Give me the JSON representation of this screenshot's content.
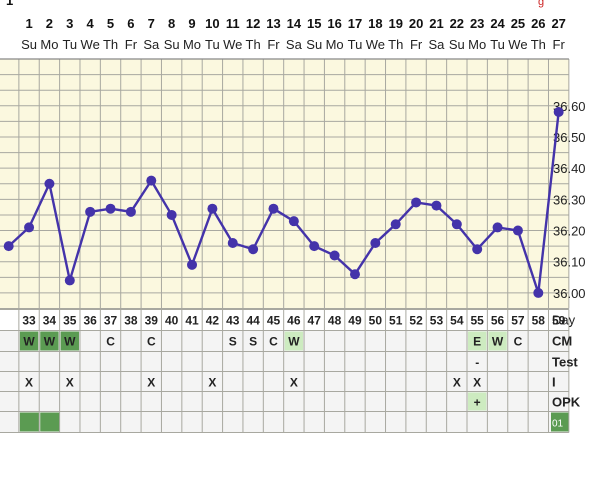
{
  "top_partial": {
    "left": "1",
    "right": "g"
  },
  "header": {
    "dates": [
      "1",
      "2",
      "3",
      "4",
      "5",
      "6",
      "7",
      "8",
      "9",
      "10",
      "11",
      "12",
      "13",
      "14",
      "15",
      "16",
      "17",
      "18",
      "19",
      "20",
      "21",
      "22",
      "23",
      "24",
      "25",
      "26",
      "27"
    ],
    "weekdays": [
      "Su",
      "Mo",
      "Tu",
      "We",
      "Th",
      "Fr",
      "Sa",
      "Su",
      "Mo",
      "Tu",
      "We",
      "Th",
      "Fr",
      "Sa",
      "Su",
      "Mo",
      "Tu",
      "We",
      "Th",
      "Fr",
      "Sa",
      "Su",
      "Mo",
      "Tu",
      "We",
      "Th",
      "Fr"
    ]
  },
  "chart_data": {
    "type": "line",
    "x": [
      32,
      33,
      34,
      35,
      36,
      37,
      38,
      39,
      40,
      41,
      42,
      43,
      44,
      45,
      46,
      47,
      48,
      49,
      50,
      51,
      52,
      53,
      54,
      55,
      56,
      57,
      58,
      59
    ],
    "values": [
      36.15,
      36.21,
      36.35,
      36.04,
      36.26,
      36.27,
      36.26,
      36.36,
      36.25,
      36.09,
      36.27,
      36.16,
      36.14,
      36.27,
      36.23,
      36.15,
      36.12,
      36.06,
      36.16,
      36.22,
      36.29,
      36.28,
      36.22,
      36.14,
      36.21,
      36.2,
      36.0,
      36.58
    ],
    "y_ticks": [
      "36.00",
      "36.10",
      "36.20",
      "36.30",
      "36.40",
      "36.50",
      "36.60"
    ],
    "ylim": [
      35.95,
      36.75
    ],
    "grid": true,
    "line_color": "#4433aa"
  },
  "rows": {
    "day": {
      "label": "Day",
      "values": [
        "33",
        "34",
        "35",
        "36",
        "37",
        "38",
        "39",
        "40",
        "41",
        "42",
        "43",
        "44",
        "45",
        "46",
        "47",
        "48",
        "49",
        "50",
        "51",
        "52",
        "53",
        "54",
        "55",
        "56",
        "57",
        "58",
        "59"
      ]
    },
    "cm": {
      "label": "CM",
      "values": [
        "W",
        "W",
        "W",
        "",
        "C",
        "",
        "C",
        "",
        "",
        "",
        "S",
        "S",
        "C",
        "W",
        "",
        "",
        "",
        "",
        "",
        "",
        "",
        "",
        "E",
        "W",
        "C",
        "",
        ""
      ]
    },
    "test": {
      "label": "Test",
      "values": [
        "",
        "",
        "",
        "",
        "",
        "",
        "",
        "",
        "",
        "",
        "",
        "",
        "",
        "",
        "",
        "",
        "",
        "",
        "",
        "",
        "",
        "",
        "-",
        "",
        "",
        "",
        ""
      ]
    },
    "i": {
      "label": "I",
      "values": [
        "X",
        "",
        "X",
        "",
        "",
        "",
        "X",
        "",
        "",
        "X",
        "",
        "",
        "",
        "X",
        "",
        "",
        "",
        "",
        "",
        "",
        "",
        "X",
        "X",
        "",
        "",
        "",
        ""
      ]
    },
    "opk": {
      "label": "OPK",
      "values": [
        "",
        "",
        "",
        "",
        "",
        "",
        "",
        "",
        "",
        "",
        "",
        "",
        "",
        "",
        "",
        "",
        "",
        "",
        "",
        "",
        "",
        "",
        "+",
        "",
        "",
        "",
        ""
      ]
    },
    "last": {
      "badge": "01"
    }
  },
  "colors": {
    "grid_bg": "#fbf8df",
    "grid_line": "#a8a8a0",
    "green": "#5b9b52",
    "cm_highlight": "#cdebc0",
    "row_bg": "#f4f4f4",
    "series": "#4433aa"
  }
}
